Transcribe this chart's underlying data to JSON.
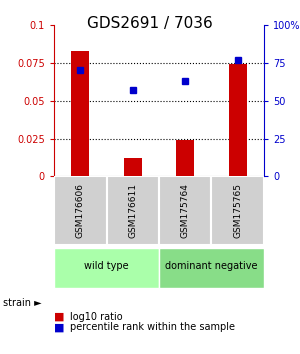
{
  "title": "GDS2691 / 7036",
  "samples": [
    "GSM176606",
    "GSM176611",
    "GSM175764",
    "GSM175765"
  ],
  "log10_ratio": [
    0.083,
    0.012,
    0.024,
    0.074
  ],
  "percentile_rank": [
    70,
    57,
    63,
    77
  ],
  "ylim_left": [
    0,
    0.1
  ],
  "ylim_right": [
    0,
    100
  ],
  "yticks_left": [
    0,
    0.025,
    0.05,
    0.075,
    0.1
  ],
  "yticks_right": [
    0,
    25,
    50,
    75,
    100
  ],
  "yticklabels_left": [
    "0",
    "0.025",
    "0.05",
    "0.075",
    "0.1"
  ],
  "yticklabels_right": [
    "0",
    "25",
    "50",
    "75",
    "100%"
  ],
  "bar_color": "#cc0000",
  "dot_color": "#0000cc",
  "sample_box_color": "#d0d0d0",
  "groups": [
    {
      "label": "wild type",
      "samples": [
        0,
        1
      ],
      "color": "#aaffaa"
    },
    {
      "label": "dominant negative",
      "samples": [
        2,
        3
      ],
      "color": "#88dd88"
    }
  ],
  "strain_label": "strain ►",
  "legend_bar_label": "log10 ratio",
  "legend_dot_label": "percentile rank within the sample",
  "title_fontsize": 11,
  "axis_label_color_left": "#cc0000",
  "axis_label_color_right": "#0000cc"
}
